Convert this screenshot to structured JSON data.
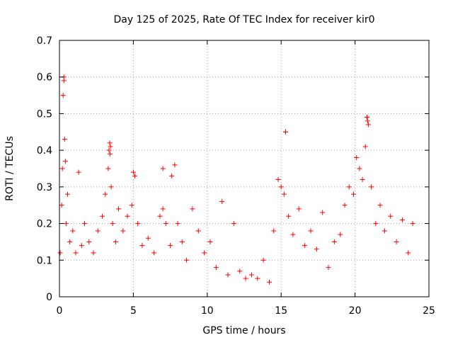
{
  "chart_data": {
    "type": "scatter",
    "title": "Day 125 of 2025, Rate Of TEC Index for receiver kir0",
    "xlabel": "GPS time / hours",
    "ylabel": "ROTI / TECUs",
    "xlim": [
      0,
      25
    ],
    "ylim": [
      0,
      0.7
    ],
    "xticks": [
      0,
      5,
      10,
      15,
      20,
      25
    ],
    "xtick_labels": [
      "0",
      "5",
      "10",
      "15",
      "20",
      "25"
    ],
    "yticks": [
      0,
      0.1,
      0.2,
      0.3,
      0.4,
      0.5,
      0.6,
      0.7
    ],
    "ytick_labels": [
      "0",
      "0.1",
      "0.2",
      "0.3",
      "0.4",
      "0.5",
      "0.6",
      "0.7"
    ],
    "grid": true,
    "marker": "+",
    "marker_color": "#ff0000",
    "series": [
      {
        "name": "ROTI",
        "x": [
          0.05,
          0.15,
          0.2,
          0.3,
          0.3,
          0.35,
          0.45,
          0.55,
          0.7,
          0.9,
          1.1,
          1.3,
          1.5,
          1.7,
          2.0,
          2.3,
          2.6,
          2.9,
          3.1,
          3.3,
          3.35,
          3.4,
          3.45,
          3.5,
          3.6,
          3.8,
          4.0,
          4.3,
          4.6,
          4.9,
          5.0,
          5.1,
          5.3,
          5.6,
          6.0,
          6.4,
          6.8,
          7.0,
          7.2,
          7.5,
          7.8,
          8.0,
          8.3,
          8.6,
          9.0,
          9.4,
          9.8,
          10.2,
          10.6,
          11.0,
          11.4,
          11.8,
          12.2,
          12.6,
          13.0,
          13.4,
          13.8,
          14.2,
          14.5,
          14.8,
          15.0,
          15.2,
          15.3,
          15.5,
          15.8,
          16.2,
          16.6,
          17.0,
          17.4,
          17.8,
          18.2,
          18.6,
          19.0,
          19.3,
          19.6,
          19.9,
          20.1,
          20.3,
          20.5,
          20.7,
          20.8,
          20.85,
          20.9,
          21.1,
          21.4,
          21.7,
          22.0,
          22.4,
          22.8,
          23.2,
          23.6,
          23.9,
          0.25,
          0.4,
          3.42,
          20.82,
          15.3,
          7.0,
          7.6
        ],
        "y": [
          0.12,
          0.25,
          0.35,
          0.6,
          0.59,
          0.43,
          0.2,
          0.28,
          0.15,
          0.18,
          0.12,
          0.34,
          0.14,
          0.2,
          0.15,
          0.12,
          0.18,
          0.22,
          0.28,
          0.35,
          0.4,
          0.42,
          0.41,
          0.3,
          0.2,
          0.15,
          0.24,
          0.18,
          0.22,
          0.25,
          0.34,
          0.33,
          0.2,
          0.14,
          0.16,
          0.12,
          0.22,
          0.35,
          0.2,
          0.14,
          0.36,
          0.2,
          0.15,
          0.1,
          0.24,
          0.18,
          0.12,
          0.15,
          0.08,
          0.26,
          0.06,
          0.2,
          0.07,
          0.05,
          0.06,
          0.05,
          0.1,
          0.04,
          0.18,
          0.32,
          0.3,
          0.28,
          0.45,
          0.22,
          0.17,
          0.24,
          0.14,
          0.18,
          0.13,
          0.23,
          0.08,
          0.15,
          0.17,
          0.25,
          0.3,
          0.28,
          0.38,
          0.35,
          0.32,
          0.41,
          0.49,
          0.48,
          0.47,
          0.3,
          0.2,
          0.25,
          0.18,
          0.22,
          0.15,
          0.21,
          0.12,
          0.2,
          0.55,
          0.37,
          0.39,
          0.49,
          0.45,
          0.24,
          0.33
        ]
      }
    ]
  }
}
